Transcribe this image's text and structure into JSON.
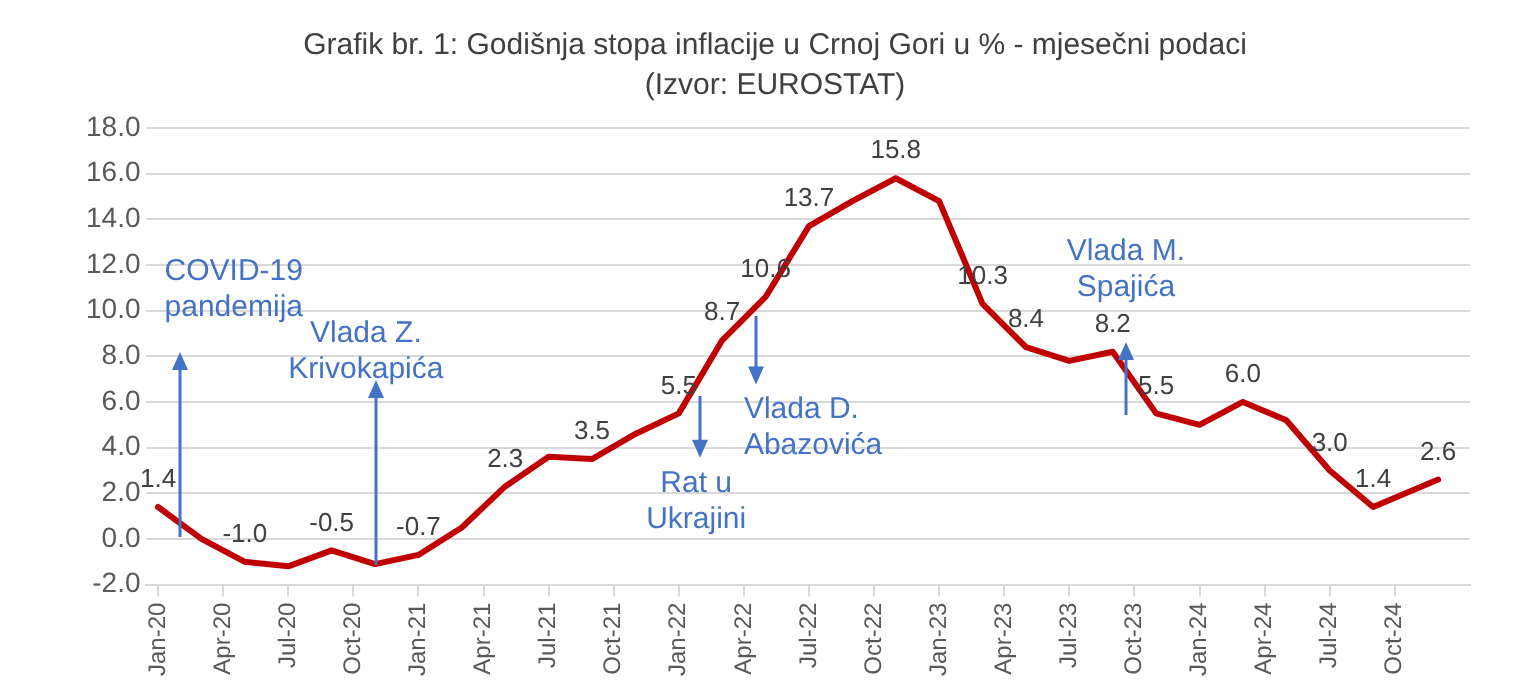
{
  "chart_data": {
    "type": "line",
    "title": "Grafik br. 1: Godišnja stopa inflacije u Crnoj Gori u % - mjesečni podaci",
    "subtitle": "(Izvor: EUROSTAT)",
    "series": [
      {
        "color": "#c00000",
        "x": [
          "2020-01",
          "2020-03",
          "2020-05",
          "2020-07",
          "2020-09",
          "2020-11",
          "2021-01",
          "2021-03",
          "2021-05",
          "2021-07",
          "2021-09",
          "2021-11",
          "2022-01",
          "2022-03",
          "2022-05",
          "2022-07",
          "2022-09",
          "2022-11",
          "2023-01",
          "2023-03",
          "2023-05",
          "2023-07",
          "2023-09",
          "2023-11",
          "2024-01",
          "2024-03",
          "2024-05",
          "2024-07",
          "2024-09",
          "2024-12"
        ],
        "values": [
          1.4,
          0.0,
          -1.0,
          -1.2,
          -0.5,
          -1.1,
          -0.7,
          0.5,
          2.3,
          3.6,
          3.5,
          4.6,
          5.5,
          8.7,
          10.6,
          13.7,
          14.8,
          15.8,
          14.8,
          10.3,
          8.4,
          7.8,
          8.2,
          5.5,
          5.0,
          6.0,
          5.2,
          3.0,
          1.4,
          2.6
        ],
        "value_labels": [
          "1.4",
          null,
          "-1.0",
          null,
          "-0.5",
          null,
          "-0.7",
          null,
          "2.3",
          null,
          "3.5",
          null,
          "5.5",
          "8.7",
          "10.6",
          "13.7",
          null,
          "15.8",
          null,
          "10.3",
          "8.4",
          null,
          "8.2",
          "5.5",
          null,
          "6.0",
          null,
          "3.0",
          "1.4",
          "2.6"
        ]
      }
    ],
    "xlim": [
      "2019-12-15",
      "2025-01-15"
    ],
    "xticks": [
      {
        "value": "2020-01",
        "label": "Jan-20"
      },
      {
        "value": "2020-04",
        "label": "Apr-20"
      },
      {
        "value": "2020-07",
        "label": "Jul-20"
      },
      {
        "value": "2020-10",
        "label": "Oct-20"
      },
      {
        "value": "2021-01",
        "label": "Jan-21"
      },
      {
        "value": "2021-04",
        "label": "Apr-21"
      },
      {
        "value": "2021-07",
        "label": "Jul-21"
      },
      {
        "value": "2021-10",
        "label": "Oct-21"
      },
      {
        "value": "2022-01",
        "label": "Jan-22"
      },
      {
        "value": "2022-04",
        "label": "Apr-22"
      },
      {
        "value": "2022-07",
        "label": "Jul-22"
      },
      {
        "value": "2022-10",
        "label": "Oct-22"
      },
      {
        "value": "2023-01",
        "label": "Jan-23"
      },
      {
        "value": "2023-04",
        "label": "Apr-23"
      },
      {
        "value": "2023-07",
        "label": "Jul-23"
      },
      {
        "value": "2023-10",
        "label": "Oct-23"
      },
      {
        "value": "2024-01",
        "label": "Jan-24"
      },
      {
        "value": "2024-04",
        "label": "Apr-24"
      },
      {
        "value": "2024-07",
        "label": "Jul-24"
      },
      {
        "value": "2024-10",
        "label": "Oct-24"
      }
    ],
    "ylim": [
      -2,
      18
    ],
    "yticks": [
      {
        "value": -2,
        "label": "-2.0"
      },
      {
        "value": 0,
        "label": "0.0"
      },
      {
        "value": 2,
        "label": "2.0"
      },
      {
        "value": 4,
        "label": "4.0"
      },
      {
        "value": 6,
        "label": "6.0"
      },
      {
        "value": 8,
        "label": "8.0"
      },
      {
        "value": 10,
        "label": "10.0"
      },
      {
        "value": 12,
        "label": "12.0"
      },
      {
        "value": 14,
        "label": "14.0"
      },
      {
        "value": 16,
        "label": "16.0"
      },
      {
        "value": 18,
        "label": "18.0"
      }
    ],
    "grid": "y",
    "legend": false,
    "marker": "none",
    "line_style": "solid",
    "annotations": [
      "COVID-19 pandemija",
      {
        "text": "Vlada Z. Krivokapića",
        "x": "2020-11",
        "y": -1.1
      },
      "Rat u Ukrajini",
      "Vlada D. Abazovića",
      "Vlada M. Spajića"
    ]
  }
}
